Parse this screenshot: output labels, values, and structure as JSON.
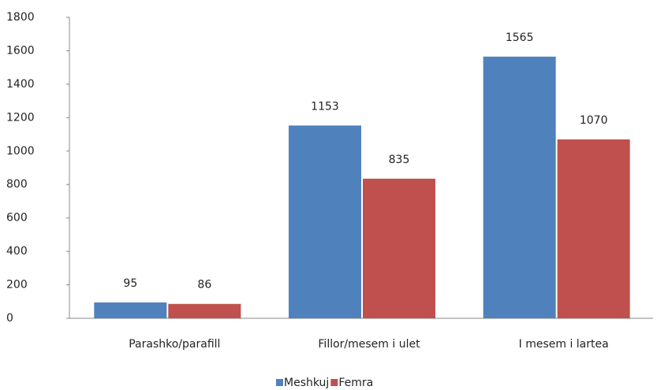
{
  "chart_data": {
    "type": "bar",
    "categories": [
      "Parashko/parafill",
      "Fillor/mesem i ulet",
      "I mesem i lartea"
    ],
    "series": [
      {
        "name": "Meshkuj",
        "color": "#4f81bd",
        "values": [
          95,
          1153,
          1565
        ]
      },
      {
        "name": "Femra",
        "color": "#c0504d",
        "values": [
          86,
          835,
          1070
        ]
      }
    ],
    "ylim": [
      0,
      1800
    ],
    "yticks": [
      0,
      200,
      400,
      600,
      800,
      1000,
      1200,
      1400,
      1600,
      1800
    ],
    "grid": false,
    "legend": "bottom"
  }
}
